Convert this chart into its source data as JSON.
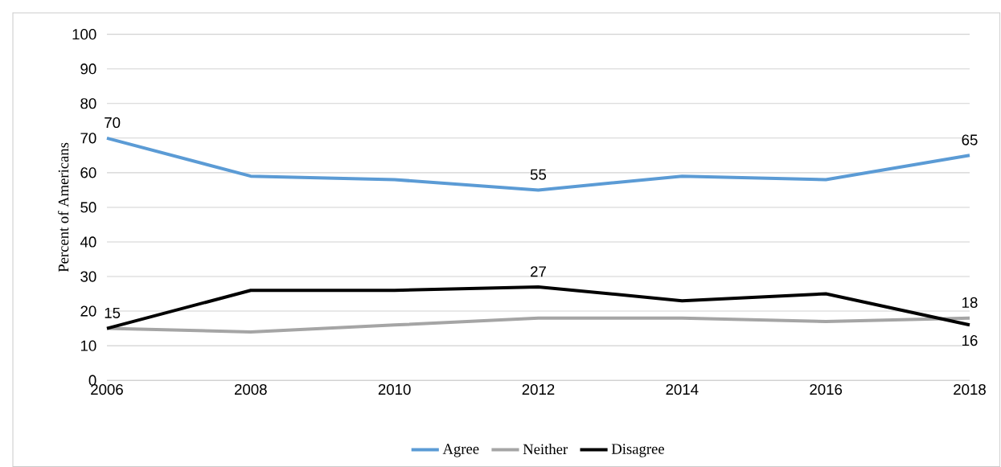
{
  "chart_data": {
    "type": "line",
    "ylabel": "Percent of Americans",
    "x": [
      2006,
      2008,
      2010,
      2012,
      2014,
      2016,
      2018
    ],
    "xlim": [
      2006,
      2018
    ],
    "xticks": [
      2006,
      2008,
      2010,
      2012,
      2014,
      2016,
      2018
    ],
    "ylim": [
      0,
      100
    ],
    "yticks": [
      0,
      10,
      20,
      30,
      40,
      50,
      60,
      70,
      80,
      90,
      100
    ],
    "grid": "y",
    "legend": "bottom",
    "marker": "none",
    "line_style": "solid",
    "series": [
      {
        "name": "Agree",
        "color": "#5b9bd5",
        "values": [
          70,
          59,
          58,
          55,
          59,
          58,
          65
        ],
        "value_labels": [
          "70",
          null,
          null,
          "55",
          null,
          null,
          "65"
        ]
      },
      {
        "name": "Neither",
        "color": "#a5a5a5",
        "values": [
          15,
          14,
          16,
          18,
          18,
          17,
          18
        ],
        "value_labels": [
          null,
          null,
          null,
          null,
          null,
          null,
          "18"
        ]
      },
      {
        "name": "Disagree",
        "color": "#000000",
        "values": [
          15,
          26,
          26,
          27,
          23,
          25,
          16
        ],
        "value_labels": [
          "15",
          null,
          null,
          "27",
          null,
          null,
          "16"
        ]
      }
    ]
  }
}
